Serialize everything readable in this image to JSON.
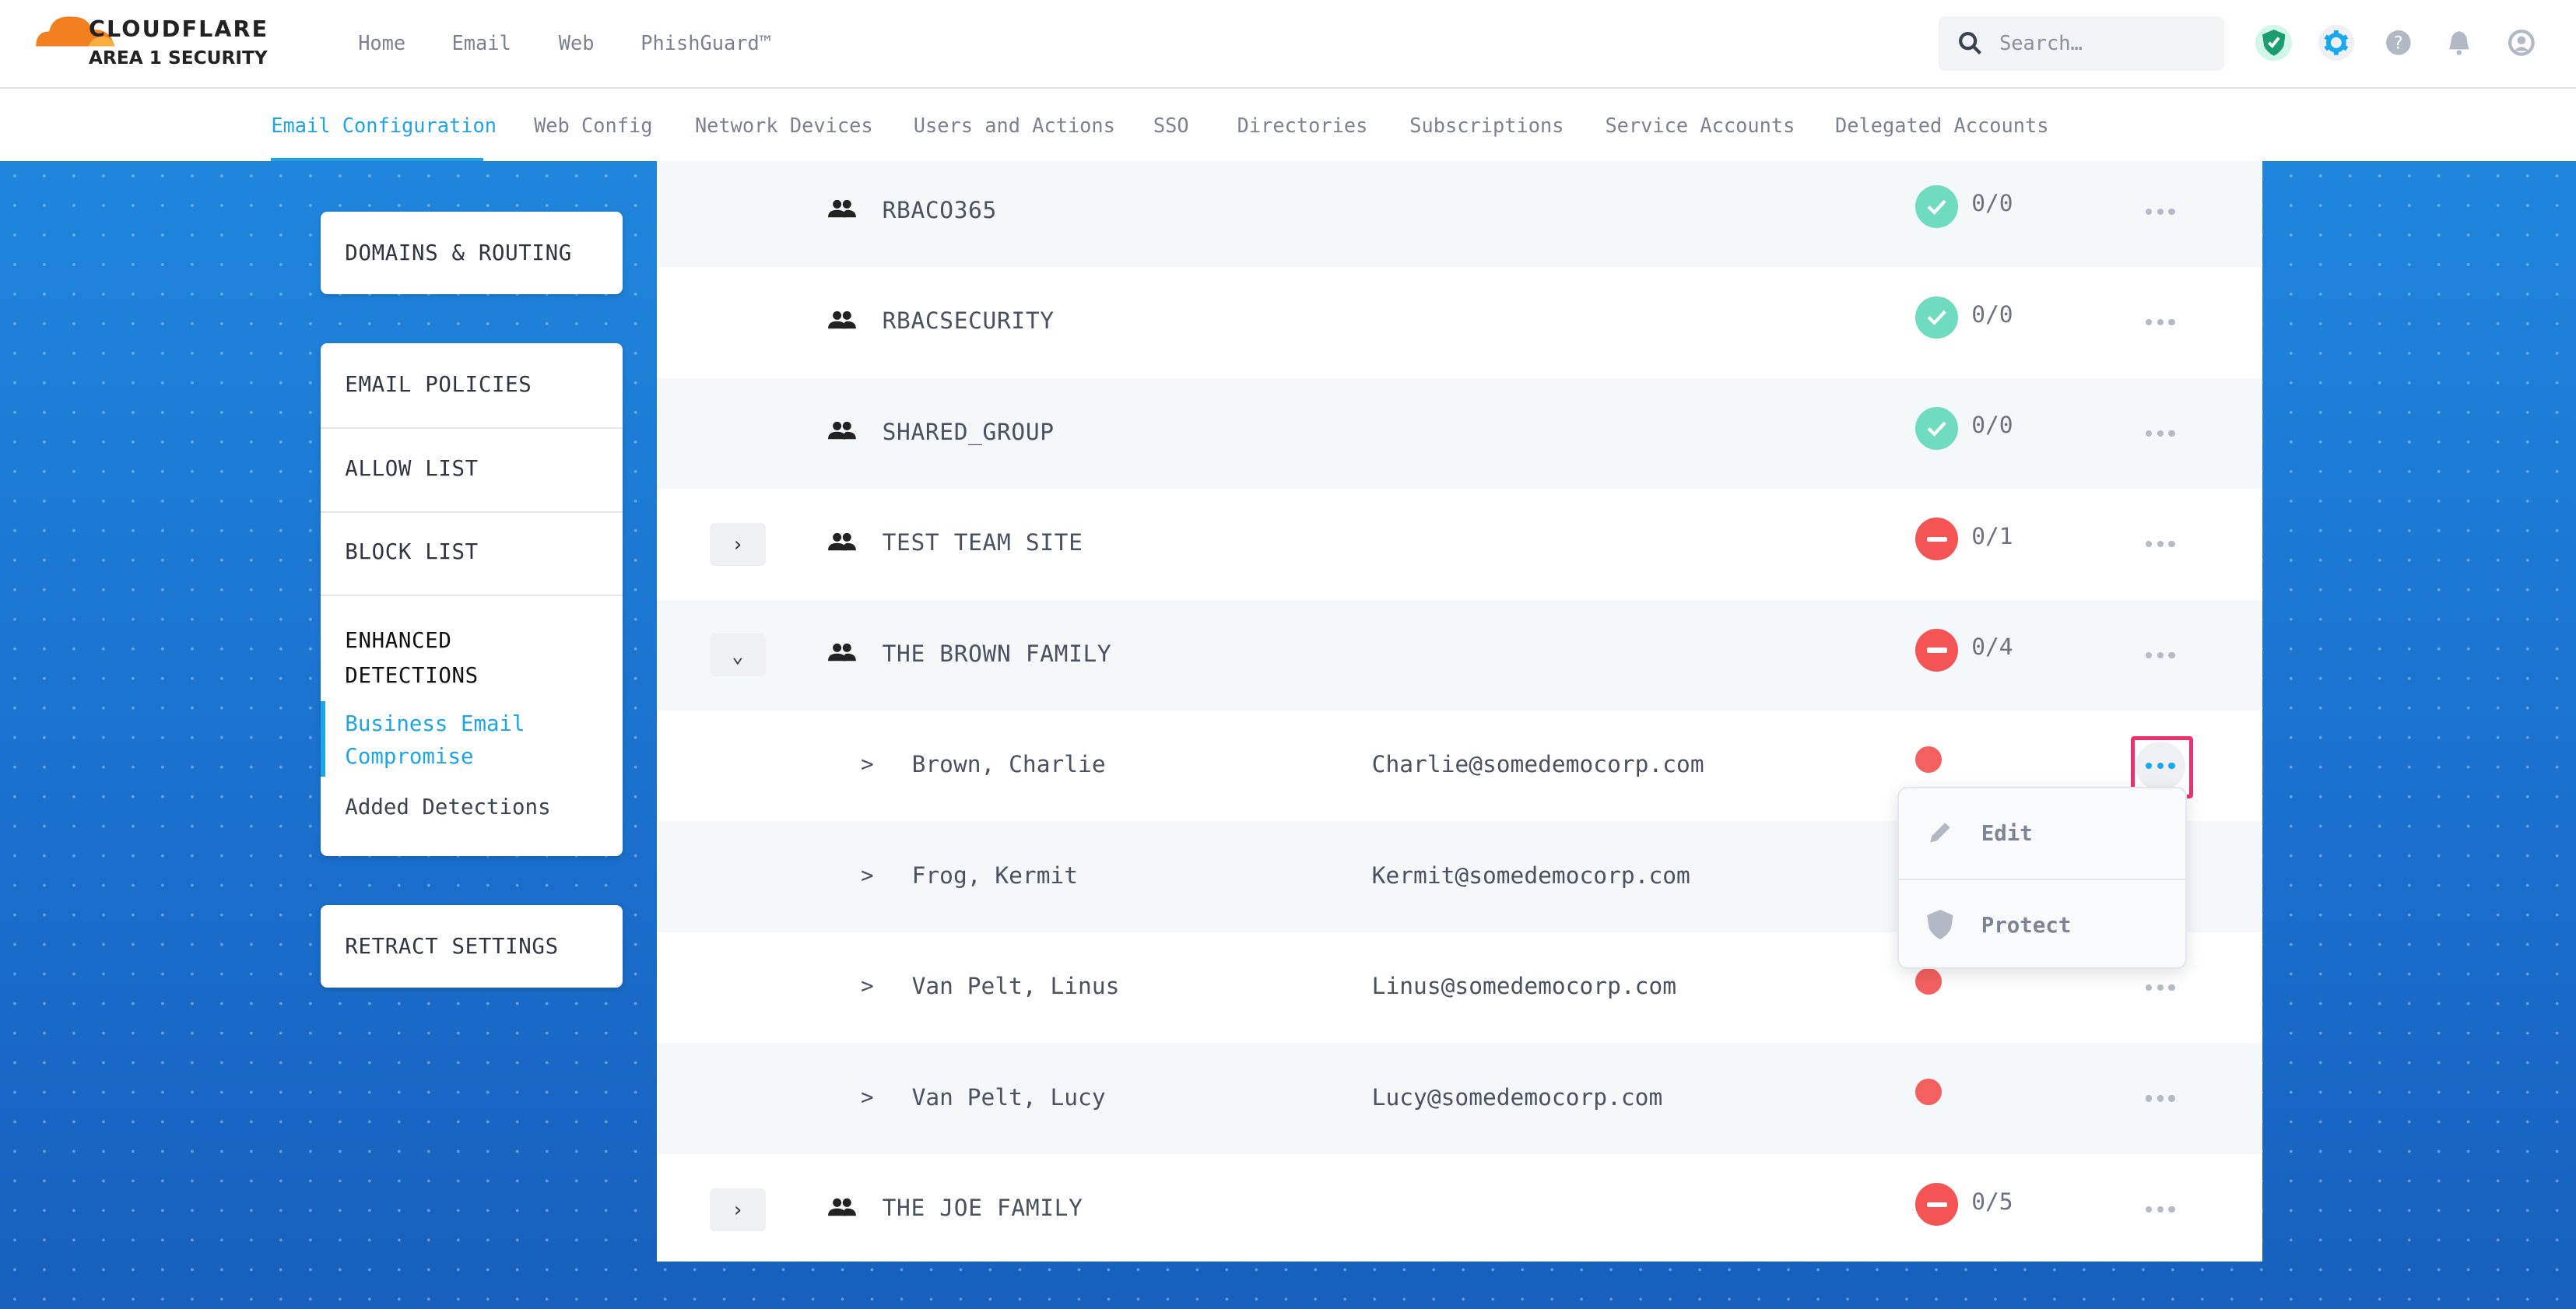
{
  "brand": {
    "name": "CLOUDFLARE",
    "product": "AREA 1 SECURITY"
  },
  "top_nav": [
    "Home",
    "Email",
    "Web",
    "PhishGuard™"
  ],
  "search": {
    "placeholder": "Search…"
  },
  "header_icons": [
    "shield-check-icon",
    "gear-icon",
    "help-icon",
    "bell-icon",
    "user-icon"
  ],
  "sub_nav": {
    "active": "Email Configuration",
    "items": [
      "Email Configuration",
      "Web Config",
      "Network Devices",
      "Users and Actions",
      "SSO",
      "Directories",
      "Subscriptions",
      "Service Accounts",
      "Delegated Accounts"
    ]
  },
  "sidebar": {
    "domains": "DOMAINS & ROUTING",
    "policies": "EMAIL POLICIES",
    "allow": "ALLOW LIST",
    "block": "BLOCK LIST",
    "enhanced": "ENHANCED DETECTIONS",
    "bec": "Business Email Compromise",
    "added": "Added Detections",
    "retract": "RETRACT SETTINGS"
  },
  "groups": [
    {
      "name": "RBACO365",
      "status": "ok",
      "count": "0/0",
      "expander": "none"
    },
    {
      "name": "RBACSECURITY",
      "status": "ok",
      "count": "0/0",
      "expander": "none"
    },
    {
      "name": "SHARED_GROUP",
      "status": "ok",
      "count": "0/0",
      "expander": "none"
    },
    {
      "name": "TEST TEAM SITE",
      "status": "bad",
      "count": "0/1",
      "expander": "collapsed"
    },
    {
      "name": "THE BROWN FAMILY",
      "status": "bad",
      "count": "0/4",
      "expander": "expanded"
    }
  ],
  "members": [
    {
      "name": "Brown, Charlie",
      "email": "Charlie@somedemocorp.com"
    },
    {
      "name": "Frog, Kermit",
      "email": "Kermit@somedemocorp.com"
    },
    {
      "name": "Van Pelt, Linus",
      "email": "Linus@somedemocorp.com"
    },
    {
      "name": "Van Pelt, Lucy",
      "email": "Lucy@somedemocorp.com"
    }
  ],
  "last_group": {
    "name": "THE JOE FAMILY",
    "status": "bad",
    "count": "0/5",
    "expander": "collapsed"
  },
  "context_menu": {
    "edit": "Edit",
    "protect": "Protect"
  },
  "member_chevron": ">",
  "colors": {
    "accent": "#1ea5e5",
    "ok": "#6fdcc0",
    "bad": "#f45454",
    "highlight": "#f0306e"
  }
}
